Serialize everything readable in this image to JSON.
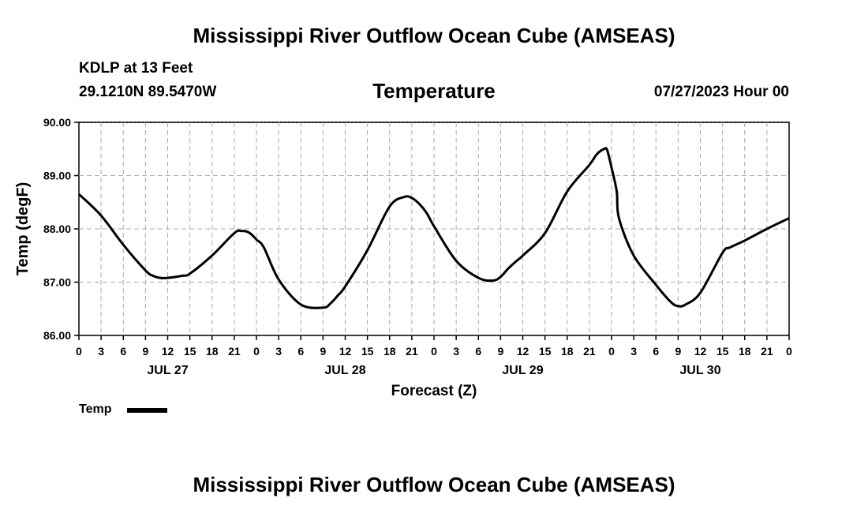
{
  "title": "Mississippi River Outflow Ocean Cube (AMSEAS)",
  "footer_title": "Mississippi River Outflow Ocean Cube (AMSEAS)",
  "station": "KDLP at 13 Feet",
  "coords": "29.1210N  89.5470W",
  "subtitle": "Temperature",
  "datetime": "07/27/2023 Hour 00",
  "legend": {
    "label": "Temp",
    "color": "#000000"
  },
  "chart_data": {
    "type": "line",
    "title": "Temperature",
    "xlabel": "Forecast (Z)",
    "ylabel": "Temp (degF)",
    "ylim": [
      86.0,
      90.0
    ],
    "xlim": [
      0,
      96
    ],
    "x_units": "hours since 07/27/2023 00Z",
    "grid": true,
    "legend_position": "bottom-left",
    "y_ticks": [
      "86.00",
      "87.00",
      "88.00",
      "89.00",
      "90.00"
    ],
    "y_tick_values": [
      86,
      87,
      88,
      89,
      90
    ],
    "x_tick_labels": [
      "0",
      "3",
      "6",
      "9",
      "12",
      "15",
      "18",
      "21",
      "0",
      "3",
      "6",
      "9",
      "12",
      "15",
      "18",
      "21",
      "0",
      "3",
      "6",
      "9",
      "12",
      "15",
      "18",
      "21",
      "0",
      "3",
      "6",
      "9",
      "12",
      "15",
      "18",
      "21",
      "0"
    ],
    "day_labels": [
      {
        "hour": 12,
        "label": "JUL 27"
      },
      {
        "hour": 36,
        "label": "JUL 28"
      },
      {
        "hour": 60,
        "label": "JUL 29"
      },
      {
        "hour": 84,
        "label": "JUL 30"
      }
    ],
    "series": [
      {
        "name": "Temp",
        "color": "#000000",
        "x": [
          0,
          3,
          6,
          9,
          10,
          11,
          12,
          14,
          15,
          18,
          21,
          22,
          23,
          24,
          25,
          27,
          30,
          33,
          34,
          35,
          36,
          39,
          42,
          44,
          45,
          46,
          47,
          48,
          51,
          54,
          56,
          57,
          58,
          59,
          60,
          63,
          66,
          69,
          70,
          71,
          71.4,
          72,
          72.7,
          73,
          75,
          78,
          80,
          81,
          82,
          84,
          87,
          88,
          90,
          93,
          96
        ],
        "values": [
          88.65,
          88.25,
          87.7,
          87.22,
          87.12,
          87.08,
          87.08,
          87.12,
          87.16,
          87.5,
          87.92,
          87.96,
          87.93,
          87.8,
          87.65,
          87.05,
          86.58,
          86.52,
          86.6,
          86.75,
          86.92,
          87.6,
          88.42,
          88.6,
          88.58,
          88.47,
          88.3,
          88.05,
          87.4,
          87.08,
          87.03,
          87.1,
          87.25,
          87.38,
          87.5,
          87.92,
          88.7,
          89.2,
          89.4,
          89.5,
          89.48,
          89.15,
          88.7,
          88.2,
          87.5,
          86.95,
          86.63,
          86.55,
          86.58,
          86.8,
          87.55,
          87.65,
          87.78,
          88.0,
          88.2
        ]
      }
    ]
  }
}
